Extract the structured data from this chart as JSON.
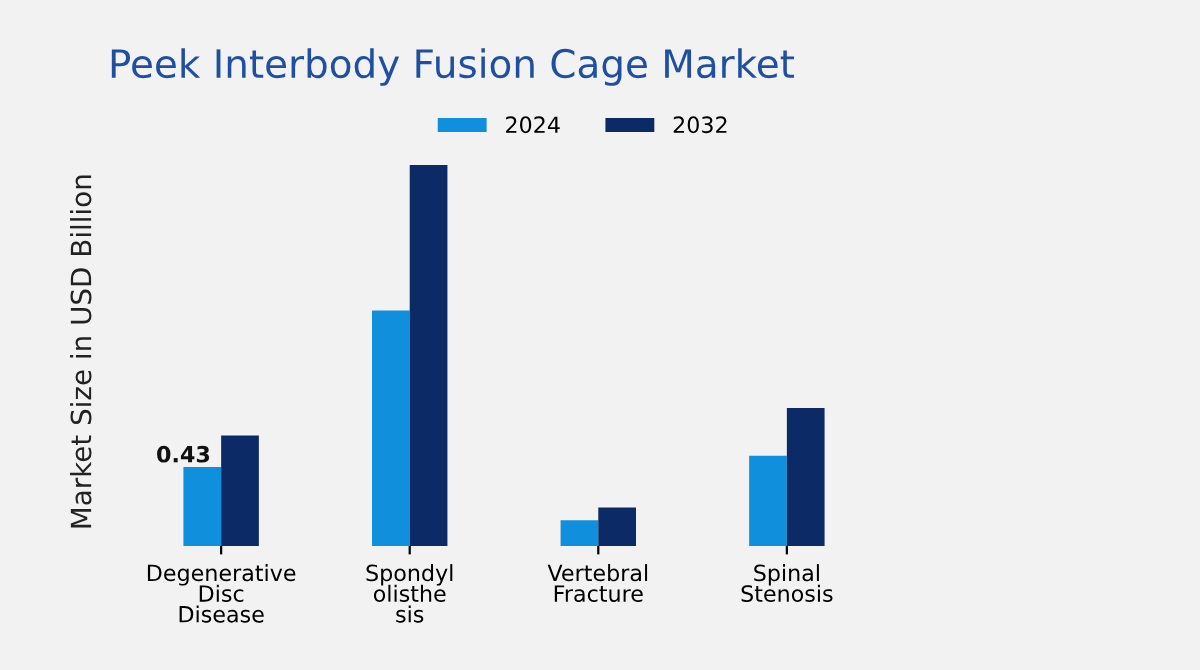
{
  "chart_data": {
    "type": "bar",
    "title": "Peek Interbody Fusion Cage Market",
    "ylabel": "Market Size in USD Billion",
    "categories": [
      "Degenerative\nDisc\nDisease",
      "Spondyl\nolisthe\nsis",
      "Vertebral\nFracture",
      "Spinal\nStenosis"
    ],
    "series": [
      {
        "name": "2024",
        "color": "#0f8fdc",
        "values": [
          0.43,
          1.28,
          0.14,
          0.49
        ],
        "value_labels": [
          "0.43",
          null,
          null,
          null
        ]
      },
      {
        "name": "2032",
        "color": "#0b2a66",
        "values": [
          0.6,
          2.07,
          0.21,
          0.75
        ]
      }
    ],
    "legend": "top",
    "grid": false
  }
}
